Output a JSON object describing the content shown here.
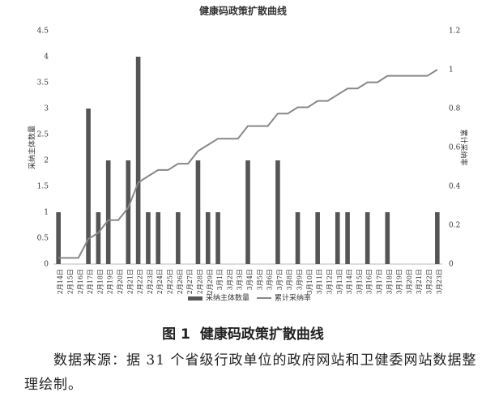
{
  "chart_data": {
    "type": "bar-line",
    "title": "健康码政策扩散曲线",
    "categories": [
      "2月14日",
      "2月15日",
      "2月16日",
      "2月17日",
      "2月18日",
      "2月19日",
      "2月20日",
      "2月21日",
      "2月22日",
      "2月23日",
      "2月24日",
      "2月25日",
      "2月26日",
      "2月27日",
      "2月28日",
      "2月29日",
      "3月1日",
      "3月2日",
      "3月3日",
      "3月4日",
      "3月5日",
      "3月6日",
      "3月7日",
      "3月8日",
      "3月9日",
      "3月10日",
      "3月11日",
      "3月12日",
      "3月13日",
      "3月14日",
      "3月15日",
      "3月16日",
      "3月17日",
      "3月18日",
      "3月19日",
      "3月20日",
      "3月21日",
      "3月22日",
      "3月23日"
    ],
    "series": [
      {
        "name": "采纳主体数量",
        "type": "bar",
        "color": "#555555",
        "values": [
          1,
          0,
          0,
          3,
          1,
          2,
          0,
          2,
          4,
          1,
          1,
          0,
          1,
          0,
          2,
          1,
          1,
          0,
          0,
          2,
          0,
          0,
          2,
          0,
          1,
          0,
          1,
          0,
          1,
          1,
          0,
          1,
          0,
          1,
          0,
          0,
          0,
          0,
          1
        ]
      },
      {
        "name": "累计采纳率",
        "type": "line",
        "axis": "y2",
        "color": "#888888",
        "values": [
          0.032,
          0.032,
          0.032,
          0.129,
          0.161,
          0.226,
          0.226,
          0.29,
          0.419,
          0.452,
          0.484,
          0.484,
          0.516,
          0.516,
          0.581,
          0.613,
          0.645,
          0.645,
          0.645,
          0.71,
          0.71,
          0.71,
          0.774,
          0.774,
          0.806,
          0.806,
          0.839,
          0.839,
          0.871,
          0.903,
          0.903,
          0.935,
          0.935,
          0.968,
          0.968,
          0.968,
          0.968,
          0.968,
          1.0
        ]
      }
    ],
    "ylabel": "采纳主体数量",
    "y2label": "累计采纳率",
    "ylim": [
      0,
      4.5
    ],
    "yticks": [
      0,
      0.5,
      1,
      1.5,
      2,
      2.5,
      3,
      3.5,
      4,
      4.5
    ],
    "y2lim": [
      0,
      1.2
    ],
    "y2ticks": [
      0,
      0.2,
      0.4,
      0.6,
      0.8,
      1,
      1.2
    ],
    "grid": false,
    "legend": "bottom"
  },
  "caption": {
    "label": "图 1",
    "title": "健康码政策扩散曲线"
  },
  "source": "数据来源：据 31 个省级行政单位的政府网站和卫健委网站数据整理绘制。"
}
